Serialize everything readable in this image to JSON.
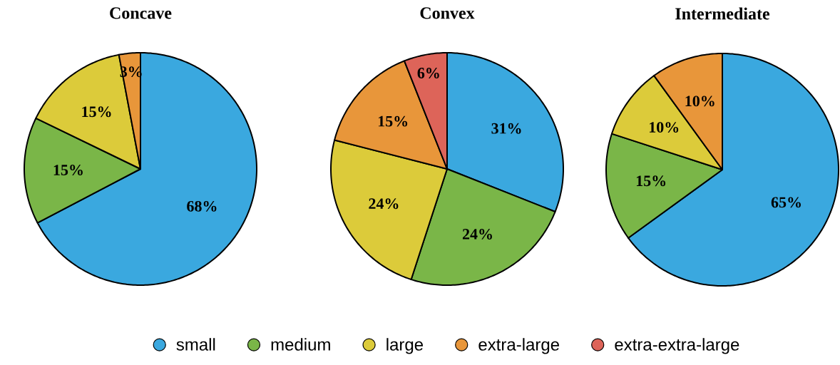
{
  "chart_data": [
    {
      "type": "pie",
      "title": "Concave",
      "categories": [
        null,
        null,
        null,
        null
      ],
      "values": [
        68,
        15,
        15,
        3
      ],
      "colors": [
        "#3aa8df",
        "#7ab648",
        "#dccb3a",
        "#e8963a"
      ],
      "value_labels": [
        "68%",
        "15%",
        "15%",
        "3%"
      ],
      "legend": false
    },
    {
      "type": "pie",
      "title": "Convex",
      "categories": [
        "small",
        "medium",
        "large",
        "extra-large",
        "extra-extra-large"
      ],
      "values": [
        31,
        24,
        24,
        15,
        6
      ],
      "colors": [
        "#3aa8df",
        "#7ab648",
        "#dccb3a",
        "#e8963a",
        "#dd6459"
      ],
      "value_labels": [
        "31%",
        "24%",
        "24%",
        "15%",
        "6%"
      ],
      "legend": "bottom"
    },
    {
      "type": "pie",
      "title": "Intermediate",
      "categories": [
        null,
        null,
        null,
        null
      ],
      "values": [
        65,
        15,
        10,
        10
      ],
      "colors": [
        "#3aa8df",
        "#7ab648",
        "#dccb3a",
        "#e8963a"
      ],
      "value_labels": [
        "65%",
        "15%",
        "10%",
        "10%"
      ],
      "legend": false
    }
  ]
}
